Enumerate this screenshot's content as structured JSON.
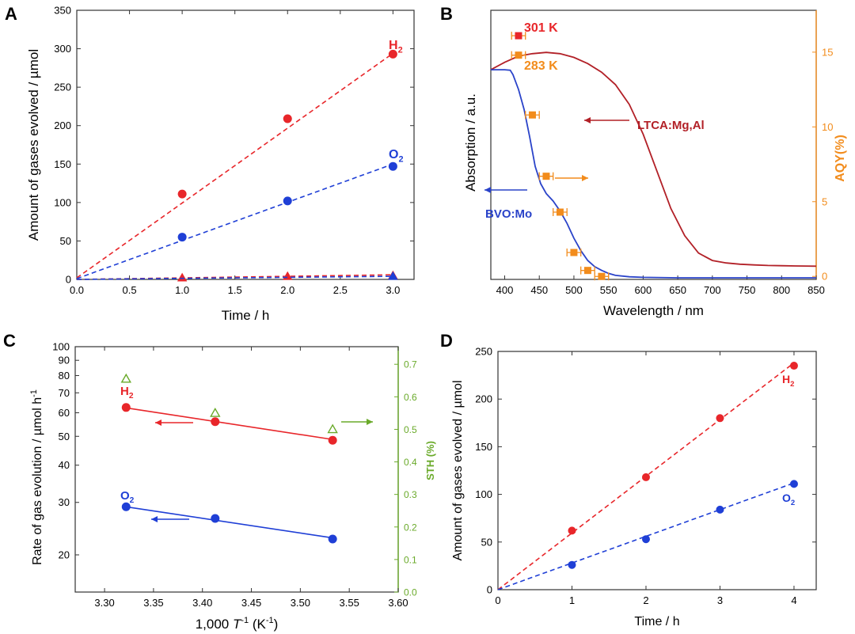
{
  "chart_data": [
    {
      "panel": "A",
      "type": "scatter",
      "xlabel": "Time / h",
      "ylabel": "Amount of gases evolved / µmol",
      "xlim": [
        0,
        3.2
      ],
      "ylim": [
        0,
        350
      ],
      "xticks": [
        0.0,
        0.5,
        1.0,
        1.5,
        2.0,
        2.5,
        3.0
      ],
      "xtick_labels": [
        "0.0",
        "0.5",
        "1.0",
        "1.5",
        "2.0",
        "2.5",
        "3.0"
      ],
      "yticks": [
        0,
        50,
        100,
        150,
        200,
        250,
        300,
        350
      ],
      "ytick_labels": [
        "0",
        "50",
        "100",
        "150",
        "200",
        "250",
        "300",
        "350"
      ],
      "series": [
        {
          "label": "H",
          "sub": "2",
          "color": "#e8262a",
          "marker": "circle",
          "x": [
            1,
            2,
            3
          ],
          "y": [
            111,
            209,
            293
          ],
          "fit": [
            [
              0,
              2
            ],
            [
              3,
              294
            ]
          ]
        },
        {
          "label": "O",
          "sub": "2",
          "color": "#1f3fd6",
          "marker": "circle",
          "x": [
            1,
            2,
            3
          ],
          "y": [
            55,
            102,
            147
          ],
          "fit": [
            [
              0,
              1
            ],
            [
              3,
              150
            ]
          ]
        },
        {
          "color": "#e8262a",
          "marker": "triangle",
          "x": [
            1,
            2,
            3
          ],
          "y": [
            2,
            4,
            5
          ],
          "fit": [
            [
              0,
              0
            ],
            [
              3,
              6
            ]
          ]
        },
        {
          "color": "#1f3fd6",
          "marker": "triangle",
          "x": [
            3
          ],
          "y": [
            4
          ],
          "fit": [
            [
              0,
              0
            ],
            [
              3,
              4
            ]
          ]
        }
      ]
    },
    {
      "panel": "B",
      "type": "line",
      "xlabel": "Wavelength / nm",
      "ylabel": "Absorption / a.u.",
      "y2label": "AQY(%)",
      "xlim": [
        380,
        850
      ],
      "y2lim": [
        -0.2,
        17.8
      ],
      "xticks": [
        400,
        450,
        500,
        550,
        600,
        650,
        700,
        750,
        800,
        850
      ],
      "xtick_labels": [
        "400",
        "450",
        "500",
        "550",
        "600",
        "650",
        "700",
        "750",
        "800",
        "850"
      ],
      "y2ticks": [
        0,
        5,
        10,
        15
      ],
      "y2tick_labels": [
        "0",
        "5",
        "10",
        "15"
      ],
      "series": [
        {
          "name": "LTCA:Mg,Al",
          "color": "#b22027",
          "x": [
            380,
            400,
            420,
            440,
            460,
            480,
            500,
            520,
            540,
            560,
            580,
            600,
            620,
            640,
            660,
            680,
            700,
            720,
            740,
            760,
            780,
            800,
            820,
            850
          ],
          "y": [
            0.84,
            0.87,
            0.895,
            0.905,
            0.91,
            0.905,
            0.89,
            0.865,
            0.83,
            0.78,
            0.7,
            0.58,
            0.43,
            0.28,
            0.17,
            0.1,
            0.07,
            0.06,
            0.055,
            0.052,
            0.05,
            0.049,
            0.048,
            0.047
          ]
        },
        {
          "name": "BVO:Mo",
          "color": "#2a43c9",
          "x": [
            380,
            400,
            408,
            412,
            420,
            428,
            436,
            444,
            452,
            460,
            470,
            480,
            490,
            500,
            510,
            520,
            530,
            540,
            550,
            560,
            580,
            600,
            650,
            700,
            850
          ],
          "y": [
            0.84,
            0.84,
            0.838,
            0.82,
            0.76,
            0.68,
            0.57,
            0.45,
            0.38,
            0.34,
            0.31,
            0.27,
            0.22,
            0.16,
            0.11,
            0.07,
            0.045,
            0.03,
            0.018,
            0.01,
            0.004,
            0.002,
            0.0,
            0.0,
            0.0
          ]
        }
      ],
      "aqy": {
        "color": "#f28c1c",
        "x": [
          420,
          420,
          440,
          460,
          480,
          500,
          520,
          540
        ],
        "y": [
          16.1,
          14.8,
          10.8,
          6.7,
          4.3,
          1.6,
          0.4,
          0.0
        ],
        "xerr": [
          10,
          10,
          10,
          10,
          10,
          10,
          10,
          10
        ]
      },
      "annotations": [
        {
          "text": "301 K",
          "color": "#e8262a"
        },
        {
          "text": "283 K",
          "color": "#f28c1c"
        },
        {
          "text": "LTCA:Mg,Al",
          "color": "#b22027"
        },
        {
          "text": "BVO:Mo",
          "color": "#2a43c9"
        }
      ]
    },
    {
      "panel": "C",
      "type": "scatter",
      "xlabel_parts": [
        "1,000 ",
        "T",
        "-1",
        " (K",
        "-1",
        ")"
      ],
      "ylabel": "Rate of gas evolution / µmol h",
      "ylabel_sup": "-1",
      "y2label": "STH (%)",
      "xlim": [
        3.27,
        3.6
      ],
      "ylim_log": [
        15,
        100
      ],
      "y2lim": [
        0,
        0.72
      ],
      "xticks": [
        3.3,
        3.35,
        3.4,
        3.45,
        3.5,
        3.55,
        3.6
      ],
      "xtick_labels": [
        "3.30",
        "3.35",
        "3.40",
        "3.45",
        "3.50",
        "3.55",
        "3.60"
      ],
      "yticks": [
        20,
        30,
        40,
        50,
        60,
        70,
        80,
        90,
        100
      ],
      "ytick_labels": [
        "20",
        "30",
        "40",
        "50",
        "60",
        "70",
        "80",
        "90",
        "100"
      ],
      "y2ticks": [
        0.0,
        0.1,
        0.2,
        0.3,
        0.4,
        0.5,
        0.6,
        0.7
      ],
      "y2tick_labels": [
        "0.0",
        "0.1",
        "0.2",
        "0.3",
        "0.4",
        "0.5",
        "0.6",
        "0.7"
      ],
      "series": [
        {
          "label": "H",
          "sub": "2",
          "color": "#e8262a",
          "x": [
            3.322,
            3.413,
            3.533
          ],
          "y": [
            62.5,
            56.0,
            48.5
          ],
          "fit": [
            [
              3.322,
              62.3
            ],
            [
              3.533,
              48.8
            ]
          ]
        },
        {
          "label": "O",
          "sub": "2",
          "color": "#1f3fd6",
          "x": [
            3.322,
            3.413,
            3.533
          ],
          "y": [
            29.0,
            26.5,
            22.6
          ],
          "fit": [
            [
              3.322,
              29.0
            ],
            [
              3.533,
              22.8
            ]
          ]
        }
      ],
      "sth": {
        "color": "#6aaa2a",
        "x": [
          3.322,
          3.413,
          3.533
        ],
        "y": [
          0.655,
          0.55,
          0.5
        ]
      }
    },
    {
      "panel": "D",
      "type": "scatter",
      "xlabel": "Time / h",
      "ylabel": "Amount of gases evolved / µmol",
      "xlim": [
        0,
        4.3
      ],
      "ylim": [
        0,
        250
      ],
      "xticks": [
        0,
        1,
        2,
        3,
        4
      ],
      "xtick_labels": [
        "0",
        "1",
        "2",
        "3",
        "4"
      ],
      "yticks": [
        0,
        50,
        100,
        150,
        200,
        250
      ],
      "ytick_labels": [
        "0",
        "50",
        "100",
        "150",
        "200",
        "250"
      ],
      "series": [
        {
          "label": "H",
          "sub": "2",
          "color": "#e8262a",
          "x": [
            1,
            2,
            3,
            4
          ],
          "y": [
            62,
            118,
            180,
            235
          ],
          "fit": [
            [
              0,
              0
            ],
            [
              4,
              238
            ]
          ]
        },
        {
          "label": "O",
          "sub": "2",
          "color": "#1f3fd6",
          "x": [
            1,
            2,
            3,
            4
          ],
          "y": [
            26,
            53,
            84,
            111
          ],
          "fit": [
            [
              0,
              0
            ],
            [
              4,
              112
            ]
          ]
        }
      ]
    }
  ]
}
